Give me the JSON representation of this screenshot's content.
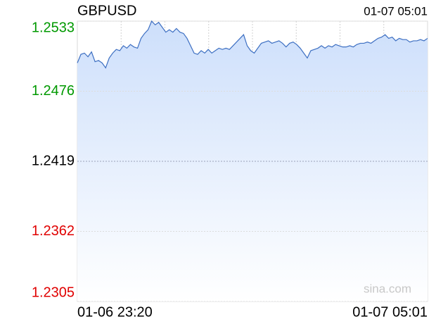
{
  "chart_data": {
    "type": "area",
    "title": "GBPUSD",
    "timestamp": "01-07 05:01",
    "watermark": "sina.com",
    "xlabels": [
      "01-06 23:20",
      "01-07 05:01"
    ],
    "values": [
      1.2499,
      1.2506,
      1.2507,
      1.2504,
      1.2508,
      1.25,
      1.2501,
      1.2499,
      1.2495,
      1.2503,
      1.2507,
      1.251,
      1.2509,
      1.2513,
      1.2511,
      1.2514,
      1.2512,
      1.2511,
      1.2519,
      1.2523,
      1.2526,
      1.2533,
      1.253,
      1.2532,
      1.2528,
      1.2524,
      1.2526,
      1.2524,
      1.2527,
      1.2524,
      1.2523,
      1.2519,
      1.2513,
      1.2507,
      1.2506,
      1.2509,
      1.2507,
      1.251,
      1.2507,
      1.2509,
      1.2511,
      1.251,
      1.2511,
      1.251,
      1.2513,
      1.2516,
      1.2519,
      1.2522,
      1.2513,
      1.2509,
      1.2507,
      1.2511,
      1.2515,
      1.2516,
      1.2517,
      1.2515,
      1.2516,
      1.2517,
      1.2515,
      1.2512,
      1.2515,
      1.2516,
      1.2514,
      1.2511,
      1.2507,
      1.2503,
      1.2509,
      1.251,
      1.2511,
      1.2513,
      1.2511,
      1.2513,
      1.2512,
      1.2514,
      1.2513,
      1.2512,
      1.2512,
      1.2513,
      1.2512,
      1.2514,
      1.2515,
      1.2515,
      1.2516,
      1.2515,
      1.2517,
      1.2519,
      1.252,
      1.2522,
      1.2519,
      1.252,
      1.2517,
      1.2519,
      1.2518,
      1.2518,
      1.2516,
      1.2517,
      1.2517,
      1.2518,
      1.2517,
      1.2519
    ],
    "color": "#3d6fc2",
    "fill_color": "#cddffb",
    "ylim": [
      1.2305,
      1.2533
    ],
    "yticks": [
      1.2305,
      1.2362,
      1.2419,
      1.2476,
      1.2533
    ],
    "reference": 1.2419,
    "up_color": "#009900",
    "down_color": "#e00000",
    "xgrid_divisions": 8,
    "grid": true
  }
}
